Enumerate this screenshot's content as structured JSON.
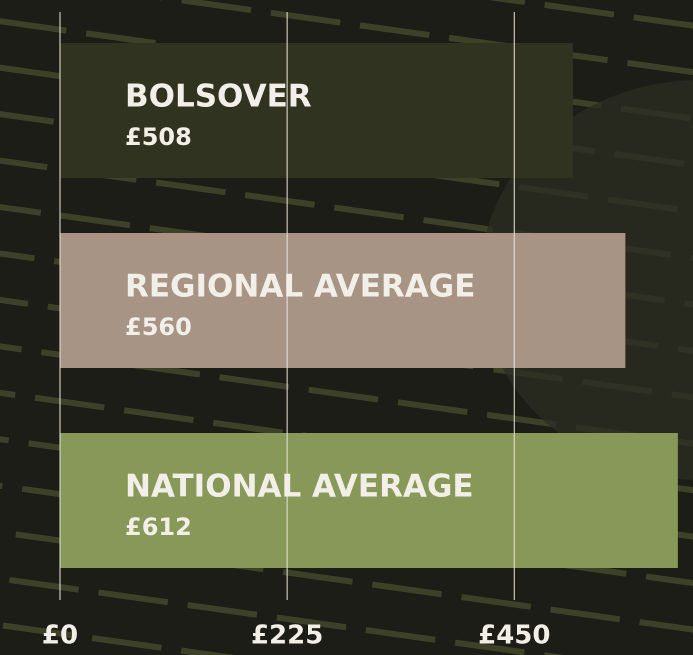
{
  "chart_data": {
    "type": "barh",
    "categories": [
      "BOLSOVER",
      "REGIONAL AVERAGE",
      "NATIONAL AVERAGE"
    ],
    "values": [
      508,
      560,
      612
    ],
    "value_labels": [
      "£508",
      "£560",
      "£612"
    ],
    "colors": [
      "#30331f",
      "#a89484",
      "#889858"
    ],
    "xlim": [
      0,
      627
    ],
    "xticks": [
      {
        "value": 0,
        "label": "£0"
      },
      {
        "value": 225,
        "label": "£225"
      },
      {
        "value": 450,
        "label": "£450"
      }
    ],
    "grid": true
  }
}
